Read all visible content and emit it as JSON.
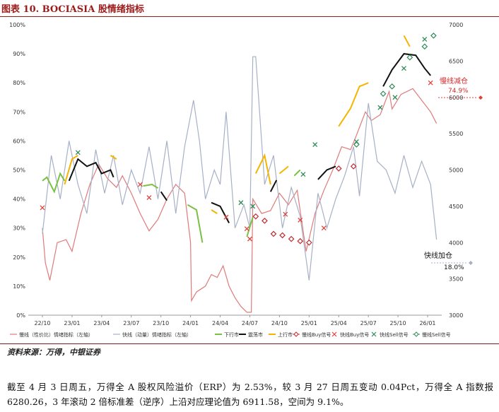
{
  "figure_title": "图表 10. BOCIASIA 股情绪指标",
  "source": "资料来源：万得，中银证券",
  "body_text": "截至 4 月 3 日周五，万得全 A 股权风险溢价（ERP）为 2.53%，较 3 月 27 日周五变动 0.04Pct，万得全 A 指数报 6280.26，3 年滚动 2 倍标准差（逆序）上沿对应理论值为 6911.58，空间为 9.1%。",
  "colors": {
    "title": "#9b1b1b",
    "slow_sentiment": "#e07a7a",
    "fast_sentiment": "#a7b0c6",
    "down_market": "#7ac143",
    "sideways_market": "#111111",
    "up_market": "#f5b400",
    "slow_buy": "#c0282d",
    "fast_buy": "#e0413c",
    "slow_sell": "#2e8b57",
    "fast_sell": "#2e8b57"
  },
  "chart_data": {
    "type": "line",
    "x_ticks": [
      "22/10",
      "23/01",
      "23/04",
      "23/07",
      "23/10",
      "24/01",
      "24/04",
      "24/07",
      "24/10",
      "25/01",
      "25/04",
      "25/07",
      "25/10",
      "26/01"
    ],
    "y_left_ticks": [
      "0%",
      "10%",
      "20%",
      "30%",
      "40%",
      "50%",
      "60%",
      "70%",
      "80%",
      "90%",
      "100%"
    ],
    "y_right_ticks": [
      "3000",
      "3500",
      "4000",
      "4500",
      "5000",
      "5500",
      "6000",
      "6500",
      "7000"
    ],
    "ylim_left": [
      0,
      100
    ],
    "ylim_right": [
      3000,
      7000
    ],
    "series": [
      {
        "name": "慢线（性价比）情绪指标（左轴）",
        "axis": "left",
        "style": "line",
        "points": [
          [
            0,
            30
          ],
          [
            0.1,
            18
          ],
          [
            0.25,
            12
          ],
          [
            0.5,
            25
          ],
          [
            0.8,
            26
          ],
          [
            1.0,
            22
          ],
          [
            1.3,
            35
          ],
          [
            1.6,
            45
          ],
          [
            1.9,
            52
          ],
          [
            2.2,
            47
          ],
          [
            2.5,
            44
          ],
          [
            2.7,
            48
          ],
          [
            3.0,
            42
          ],
          [
            3.3,
            35
          ],
          [
            3.6,
            29
          ],
          [
            3.9,
            33
          ],
          [
            4.2,
            40
          ],
          [
            4.5,
            45
          ],
          [
            4.8,
            42
          ],
          [
            5.0,
            25
          ],
          [
            5.03,
            5
          ],
          [
            5.2,
            8
          ],
          [
            5.5,
            10
          ],
          [
            5.7,
            14
          ],
          [
            5.9,
            13
          ],
          [
            6.1,
            17
          ],
          [
            6.3,
            10
          ],
          [
            6.5,
            6
          ],
          [
            6.7,
            3
          ],
          [
            6.9,
            1
          ],
          [
            7.05,
            1
          ],
          [
            7.1,
            40
          ],
          [
            7.4,
            35
          ],
          [
            7.7,
            36
          ],
          [
            8.0,
            42
          ],
          [
            8.3,
            38
          ],
          [
            8.6,
            43
          ],
          [
            8.9,
            22
          ],
          [
            9.2,
            35
          ],
          [
            9.5,
            43
          ],
          [
            9.8,
            50
          ],
          [
            10.1,
            58
          ],
          [
            10.4,
            57
          ],
          [
            10.6,
            62
          ],
          [
            10.9,
            70
          ],
          [
            11.1,
            67
          ],
          [
            11.4,
            69
          ],
          [
            11.7,
            77
          ],
          [
            11.8,
            71
          ],
          [
            12.1,
            76
          ],
          [
            12.5,
            78
          ],
          [
            12.8,
            74
          ],
          [
            13.1,
            70
          ],
          [
            13.3,
            66
          ]
        ]
      },
      {
        "name": "快线（动量）情绪指标（左轴）",
        "axis": "left",
        "style": "line",
        "points": [
          [
            0,
            28
          ],
          [
            0.3,
            55
          ],
          [
            0.6,
            40
          ],
          [
            0.9,
            60
          ],
          [
            1.2,
            45
          ],
          [
            1.5,
            35
          ],
          [
            1.8,
            57
          ],
          [
            2.1,
            42
          ],
          [
            2.4,
            55
          ],
          [
            2.7,
            38
          ],
          [
            3.0,
            50
          ],
          [
            3.3,
            42
          ],
          [
            3.6,
            58
          ],
          [
            3.9,
            40
          ],
          [
            4.2,
            60
          ],
          [
            4.5,
            35
          ],
          [
            4.8,
            58
          ],
          [
            5.1,
            74
          ],
          [
            5.3,
            60
          ],
          [
            5.5,
            40
          ],
          [
            5.8,
            50
          ],
          [
            6.0,
            45
          ],
          [
            6.2,
            70
          ],
          [
            6.5,
            30
          ],
          [
            6.8,
            38
          ],
          [
            7.0,
            30
          ],
          [
            7.1,
            89
          ],
          [
            7.2,
            89
          ],
          [
            7.5,
            45
          ],
          [
            7.8,
            55
          ],
          [
            8.1,
            30
          ],
          [
            8.4,
            44
          ],
          [
            8.7,
            34
          ],
          [
            9.0,
            12
          ],
          [
            9.3,
            42
          ],
          [
            9.6,
            30
          ],
          [
            9.9,
            40
          ],
          [
            10.2,
            48
          ],
          [
            10.5,
            58
          ],
          [
            10.7,
            41
          ],
          [
            11.0,
            73
          ],
          [
            11.3,
            53
          ],
          [
            11.6,
            50
          ],
          [
            11.9,
            42
          ],
          [
            12.2,
            55
          ],
          [
            12.5,
            44
          ],
          [
            12.8,
            53
          ],
          [
            13.1,
            45
          ],
          [
            13.3,
            26
          ]
        ]
      },
      {
        "name": "下行市",
        "axis": "right",
        "style": "segments",
        "segments": [
          [
            [
              0.0,
              4850
            ],
            [
              0.15,
              4900
            ],
            [
              0.4,
              4700
            ],
            [
              0.6,
              4950
            ],
            [
              0.75,
              4850
            ]
          ],
          [
            [
              3.4,
              4780
            ],
            [
              3.7,
              4800
            ],
            [
              3.9,
              4750
            ]
          ],
          [
            [
              4.9,
              4520
            ],
            [
              5.2,
              4450
            ],
            [
              5.4,
              4000
            ]
          ],
          [
            [
              6.9,
              4080
            ],
            [
              7.1,
              4350
            ]
          ],
          [
            [
              8.5,
              4920
            ],
            [
              8.7,
              5000
            ]
          ]
        ]
      },
      {
        "name": "震荡市",
        "axis": "right",
        "style": "segments",
        "segments": [
          [
            [
              0.9,
              4850
            ],
            [
              1.2,
              5150
            ],
            [
              1.5,
              5050
            ],
            [
              1.8,
              5100
            ],
            [
              2.0,
              4950
            ],
            [
              2.3,
              5000
            ],
            [
              2.4,
              4900
            ]
          ],
          [
            [
              4.0,
              4700
            ],
            [
              4.2,
              4580
            ]
          ],
          [
            [
              5.7,
              4550
            ],
            [
              6.0,
              4500
            ],
            [
              6.3,
              4270
            ]
          ],
          [
            [
              7.7,
              4700
            ],
            [
              7.9,
              4860
            ]
          ],
          [
            [
              9.3,
              4870
            ],
            [
              9.6,
              5000
            ],
            [
              9.9,
              5050
            ]
          ],
          [
            [
              11.5,
              6150
            ],
            [
              11.8,
              6380
            ],
            [
              12.2,
              6600
            ],
            [
              12.6,
              6580
            ],
            [
              12.9,
              6400
            ],
            [
              13.1,
              6300
            ]
          ]
        ]
      },
      {
        "name": "上行市",
        "axis": "right",
        "style": "segments",
        "segments": [
          [
            [
              0.75,
              4800
            ],
            [
              1.0,
              5150
            ],
            [
              1.2,
              5200
            ]
          ],
          [
            [
              2.3,
              5200
            ],
            [
              2.5,
              5150
            ]
          ],
          [
            [
              5.7,
              4450
            ],
            [
              5.9,
              4400
            ]
          ],
          [
            [
              7.2,
              4950
            ],
            [
              7.5,
              5200
            ],
            [
              7.7,
              4800
            ]
          ],
          [
            [
              8.0,
              4950
            ],
            [
              8.3,
              5050
            ]
          ],
          [
            [
              10.0,
              5600
            ],
            [
              10.4,
              5850
            ],
            [
              10.7,
              6150
            ],
            [
              11.0,
              6200
            ]
          ],
          [
            [
              12.2,
              6850
            ],
            [
              12.4,
              6700
            ]
          ]
        ]
      },
      {
        "name": "慢线Buy信号",
        "axis": "right",
        "style": "markers",
        "marker": "diamond",
        "points": [
          [
            7.2,
            4360
          ],
          [
            7.5,
            4300
          ],
          [
            7.8,
            4120
          ],
          [
            8.1,
            4100
          ],
          [
            8.4,
            4050
          ],
          [
            8.7,
            4020
          ],
          [
            9.0,
            4000
          ],
          [
            10.0,
            5020
          ],
          [
            10.5,
            5050
          ]
        ]
      },
      {
        "name": "快线Buy信号",
        "axis": "right",
        "style": "markers",
        "marker": "x",
        "points": [
          [
            0.0,
            4480
          ],
          [
            3.3,
            4800
          ],
          [
            3.6,
            4620
          ],
          [
            6.2,
            4350
          ],
          [
            6.9,
            4190
          ],
          [
            7.0,
            4050
          ],
          [
            8.2,
            4390
          ],
          [
            8.7,
            4310
          ],
          [
            9.5,
            4200
          ],
          [
            13.1,
            6200
          ]
        ]
      },
      {
        "name": "快线Sell信号",
        "axis": "right",
        "style": "markers",
        "marker": "x",
        "points": [
          [
            1.2,
            5240
          ],
          [
            6.7,
            4550
          ],
          [
            7.1,
            4500
          ],
          [
            8.8,
            4940
          ],
          [
            9.2,
            5350
          ],
          [
            10.6,
            5390
          ],
          [
            11.4,
            5860
          ],
          [
            11.9,
            6000
          ],
          [
            12.2,
            6400
          ],
          [
            12.9,
            6800
          ]
        ]
      },
      {
        "name": "慢线Sell信号",
        "axis": "right",
        "style": "markers",
        "marker": "diamond",
        "points": [
          [
            10.6,
            5350
          ],
          [
            11.5,
            6050
          ],
          [
            11.8,
            6150
          ],
          [
            12.4,
            6550
          ],
          [
            12.9,
            6700
          ],
          [
            13.2,
            6850
          ]
        ]
      }
    ],
    "annotations": [
      {
        "text": "慢线减仓",
        "value_text": "74.9%",
        "axis_value": 74.9
      },
      {
        "text": "快线加仓",
        "value_text": "18.0%",
        "axis_value": 18.0
      }
    ],
    "legend": [
      "慢线（性价比）情绪指标（左轴）",
      "快线（动量）情绪指标（左轴）",
      "下行市",
      "震荡市",
      "上行市",
      "慢线Buy信号",
      "快线Buy信号",
      "快线Sell信号",
      "慢线Sell信号"
    ],
    "legend_position": "bottom",
    "grid": false
  }
}
